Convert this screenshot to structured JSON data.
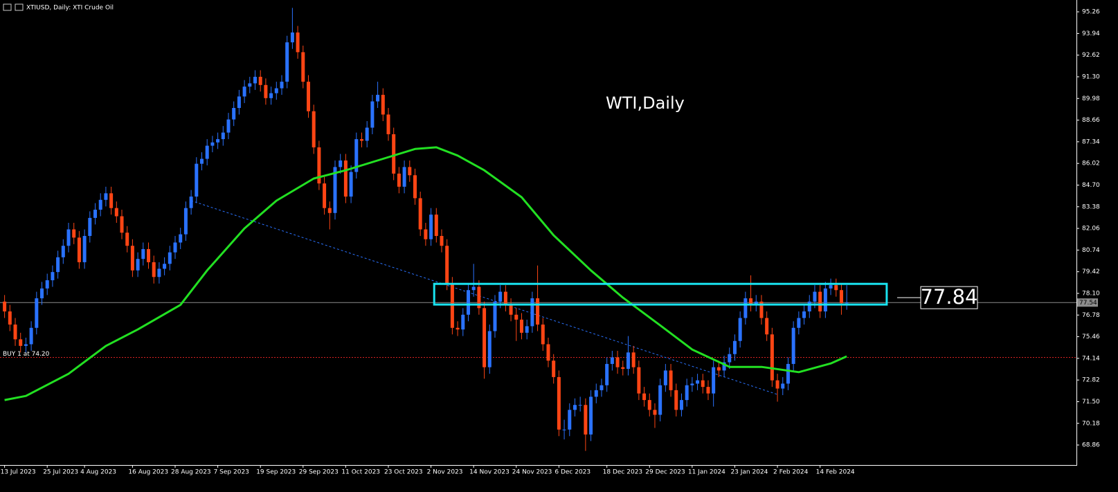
{
  "chart_data": {
    "type": "candlestick",
    "title": "XTIUSD, Daily:  XTI Crude Oil",
    "annotation": "WTI,Daily",
    "up_color": "#2a72ff",
    "down_color": "#ff4514",
    "xlim": [
      -0.86,
      201.1
    ],
    "ylim": [
      67.64,
      95.98
    ],
    "yticks": [
      95.26,
      93.94,
      92.62,
      {
        "value": 91.3,
        "label": "91.30"
      },
      89.98,
      88.66,
      87.34,
      86.02,
      {
        "value": 84.7,
        "label": "84.70"
      },
      83.38,
      82.06,
      80.74,
      79.42,
      {
        "value": 78.1,
        "label": "78.10"
      },
      76.78,
      75.46,
      74.14,
      72.82,
      {
        "value": 71.5,
        "label": "71.50"
      },
      70.18,
      68.86
    ],
    "xticks": [
      {
        "value": 0,
        "label": "13 Jul 2023"
      },
      {
        "value": 8,
        "label": "25 Jul 2023"
      },
      {
        "value": 15,
        "label": "4 Aug 2023"
      },
      {
        "value": 24,
        "label": "16 Aug 2023"
      },
      {
        "value": 32,
        "label": "28 Aug 2023"
      },
      {
        "value": 40,
        "label": "7 Sep 2023"
      },
      {
        "value": 48,
        "label": "19 Sep 2023"
      },
      {
        "value": 56,
        "label": "29 Sep 2023"
      },
      {
        "value": 64,
        "label": "11 Oct 2023"
      },
      {
        "value": 72,
        "label": "23 Oct 2023"
      },
      {
        "value": 80,
        "label": "2 Nov 2023"
      },
      {
        "value": 88,
        "label": "14 Nov 2023"
      },
      {
        "value": 96,
        "label": "24 Nov 2023"
      },
      {
        "value": 104,
        "label": "6 Dec 2023"
      },
      {
        "value": 113,
        "label": "18 Dec 2023"
      },
      {
        "value": 121,
        "label": "29 Dec 2023"
      },
      {
        "value": 129,
        "label": "11 Jan 2024"
      },
      {
        "value": 137,
        "label": "23 Jan 2024"
      },
      {
        "value": 145,
        "label": "2 Feb 2024"
      },
      {
        "value": 153,
        "label": "14 Feb 2024"
      }
    ],
    "open": [
      77.6,
      77.0,
      76.2,
      75.3,
      74.9,
      75.0,
      76.0,
      77.8,
      78.4,
      78.9,
      79.4,
      80.3,
      81.0,
      82.0,
      81.5,
      80.0,
      81.6,
      82.7,
      83.2,
      83.8,
      84.2,
      83.3,
      82.8,
      81.8,
      81.0,
      79.5,
      80.2,
      80.8,
      80.0,
      79.1,
      79.6,
      79.9,
      80.6,
      81.2,
      81.7,
      83.3,
      84.0,
      86.0,
      86.3,
      87.1,
      87.3,
      87.5,
      87.9,
      88.7,
      89.4,
      90.1,
      90.7,
      90.9,
      91.3,
      90.8,
      90.0,
      90.3,
      90.6,
      91.0,
      93.4,
      94.0,
      92.8,
      91.0,
      89.2,
      87.0,
      84.8,
      83.3,
      83.0,
      85.8,
      86.2,
      84.0,
      85.5,
      87.5,
      87.4,
      88.2,
      89.8,
      90.2,
      89.0,
      87.8,
      85.4,
      84.6,
      85.8,
      85.3,
      83.9,
      82.0,
      81.4,
      82.9,
      81.6,
      81.0,
      78.7,
      76.0,
      75.9,
      76.8,
      78.3,
      78.5,
      77.2,
      73.6,
      75.8,
      77.6,
      78.2,
      77.4,
      76.8,
      76.5,
      75.7,
      76.1,
      77.8,
      76.2,
      75.0,
      74.0,
      73.0,
      69.8,
      69.8,
      71.0,
      71.3,
      71.3,
      69.5,
      71.8,
      72.2,
      72.5,
      73.8,
      74.2,
      73.6,
      73.5,
      74.5,
      73.6,
      72.0,
      71.6,
      71.0,
      70.7,
      72.5,
      73.4,
      72.2,
      71.0,
      71.6,
      72.5,
      72.6,
      72.8,
      72.4,
      72.0,
      73.6,
      73.4,
      73.9,
      74.4,
      75.2,
      76.6,
      77.8,
      77.4,
      77.6,
      76.6,
      75.6,
      72.8,
      72.3,
      72.6,
      73.8,
      76.0,
      76.6,
      77.0,
      77.6,
      78.2,
      77.0,
      78.4,
      78.6,
      78.3,
      77.5
    ],
    "high": [
      78.0,
      77.4,
      76.6,
      75.7,
      75.4,
      76.4,
      78.2,
      78.8,
      79.3,
      79.8,
      80.7,
      81.4,
      82.4,
      82.4,
      81.9,
      82.0,
      83.1,
      83.6,
      84.2,
      84.6,
      84.6,
      83.7,
      83.2,
      82.2,
      81.4,
      80.6,
      81.2,
      81.2,
      80.4,
      80.0,
      80.3,
      81.0,
      81.6,
      82.1,
      83.7,
      84.4,
      86.4,
      86.7,
      87.5,
      87.7,
      87.9,
      88.3,
      89.1,
      89.8,
      90.5,
      91.1,
      91.3,
      91.7,
      91.7,
      91.2,
      90.7,
      91.0,
      91.4,
      93.8,
      95.5,
      94.4,
      93.2,
      91.4,
      89.6,
      87.4,
      85.2,
      83.7,
      86.2,
      86.6,
      86.6,
      85.9,
      87.9,
      87.9,
      88.6,
      90.2,
      91.0,
      90.6,
      89.4,
      88.2,
      85.8,
      86.2,
      86.2,
      85.7,
      84.3,
      82.4,
      83.3,
      83.3,
      82.0,
      81.4,
      79.1,
      76.4,
      77.2,
      78.7,
      79.9,
      78.9,
      77.6,
      76.2,
      78.0,
      78.6,
      78.6,
      77.8,
      77.2,
      76.9,
      76.5,
      78.2,
      79.8,
      76.6,
      75.4,
      74.4,
      73.4,
      70.4,
      71.4,
      71.7,
      71.8,
      71.7,
      72.2,
      72.6,
      72.9,
      74.2,
      74.6,
      74.6,
      74.0,
      75.5,
      74.9,
      74.0,
      72.4,
      72.0,
      71.4,
      72.9,
      73.8,
      73.8,
      72.6,
      72.0,
      72.9,
      73.0,
      73.2,
      73.2,
      72.8,
      74.0,
      74.0,
      74.3,
      74.8,
      75.6,
      77.0,
      78.2,
      79.2,
      78.0,
      78.0,
      77.0,
      76.0,
      73.2,
      73.0,
      74.2,
      76.4,
      77.0,
      77.4,
      78.0,
      78.6,
      78.6,
      78.8,
      79.0,
      79.0,
      78.7,
      78.6
    ],
    "low": [
      76.6,
      75.8,
      74.9,
      74.5,
      74.5,
      74.6,
      75.6,
      77.4,
      78.0,
      78.5,
      79.0,
      79.9,
      80.6,
      81.1,
      79.6,
      79.6,
      81.2,
      82.3,
      82.8,
      83.4,
      82.9,
      82.4,
      81.4,
      80.6,
      79.1,
      79.1,
      79.8,
      79.6,
      78.7,
      78.7,
      79.2,
      79.5,
      80.2,
      80.8,
      81.3,
      82.9,
      83.6,
      85.6,
      85.9,
      86.7,
      86.9,
      87.1,
      87.5,
      88.3,
      89.0,
      89.7,
      90.3,
      90.5,
      90.4,
      89.6,
      89.6,
      89.9,
      90.2,
      90.6,
      93.0,
      92.4,
      90.6,
      88.8,
      86.6,
      84.4,
      82.9,
      82.0,
      82.6,
      85.4,
      83.6,
      83.6,
      85.1,
      87.0,
      87.0,
      87.8,
      89.4,
      88.6,
      87.4,
      85.0,
      84.2,
      84.2,
      84.9,
      83.5,
      81.6,
      81.0,
      81.0,
      81.2,
      80.6,
      78.3,
      75.6,
      75.5,
      75.5,
      76.4,
      77.9,
      76.8,
      72.9,
      73.2,
      75.4,
      77.2,
      77.0,
      76.4,
      75.2,
      75.3,
      75.3,
      75.7,
      75.8,
      74.6,
      73.6,
      72.6,
      69.4,
      69.2,
      69.4,
      70.6,
      70.9,
      68.5,
      69.1,
      71.4,
      71.8,
      72.1,
      73.4,
      73.2,
      73.1,
      73.1,
      73.2,
      71.6,
      71.2,
      70.6,
      69.9,
      70.3,
      72.1,
      71.8,
      70.6,
      70.6,
      71.2,
      72.1,
      72.2,
      72.0,
      71.6,
      71.2,
      73.0,
      73.0,
      73.5,
      74.0,
      74.8,
      76.2,
      77.0,
      77.0,
      76.2,
      75.2,
      72.4,
      71.5,
      71.9,
      72.2,
      73.4,
      75.6,
      76.2,
      76.6,
      77.2,
      76.6,
      76.6,
      78.0,
      77.9,
      76.8,
      77.1
    ],
    "close": [
      77.0,
      76.2,
      75.3,
      74.9,
      75.0,
      76.0,
      77.8,
      78.4,
      78.9,
      79.4,
      80.3,
      81.0,
      82.0,
      81.5,
      80.0,
      81.6,
      82.7,
      83.2,
      83.8,
      84.2,
      83.3,
      82.8,
      81.8,
      81.0,
      79.5,
      80.2,
      80.8,
      80.0,
      79.1,
      79.6,
      79.9,
      80.6,
      81.2,
      81.7,
      83.3,
      84.0,
      86.0,
      86.3,
      87.1,
      87.3,
      87.5,
      87.9,
      88.7,
      89.4,
      90.1,
      90.7,
      90.9,
      91.3,
      90.8,
      90.0,
      90.3,
      90.6,
      91.0,
      93.4,
      94.0,
      92.8,
      91.0,
      89.2,
      87.0,
      84.8,
      83.3,
      83.0,
      85.8,
      86.2,
      84.0,
      85.5,
      87.5,
      87.4,
      88.2,
      89.8,
      90.2,
      89.0,
      87.8,
      85.4,
      84.6,
      85.8,
      85.3,
      83.9,
      82.0,
      81.4,
      82.9,
      81.6,
      81.0,
      78.7,
      76.0,
      75.9,
      76.8,
      78.3,
      78.5,
      77.2,
      73.6,
      75.8,
      77.6,
      78.2,
      77.4,
      76.8,
      76.5,
      75.7,
      76.1,
      77.8,
      76.2,
      75.0,
      74.0,
      73.0,
      69.8,
      69.8,
      71.0,
      71.3,
      71.3,
      69.5,
      71.8,
      72.2,
      72.5,
      73.8,
      74.2,
      73.6,
      73.5,
      74.5,
      73.6,
      72.0,
      71.6,
      71.0,
      70.7,
      72.5,
      73.4,
      72.2,
      71.0,
      71.6,
      72.5,
      72.6,
      72.8,
      72.4,
      72.0,
      73.6,
      73.4,
      73.9,
      74.4,
      75.2,
      76.6,
      77.8,
      77.4,
      77.6,
      76.6,
      75.6,
      72.8,
      72.3,
      72.6,
      73.8,
      76.0,
      76.6,
      77.0,
      77.6,
      78.2,
      77.0,
      78.4,
      78.6,
      78.3,
      77.5,
      77.54
    ],
    "moving_average": {
      "color": "#22e022",
      "x": [
        0,
        4,
        12,
        19,
        25,
        33,
        38,
        45,
        51,
        58,
        64,
        71,
        77,
        81,
        85,
        90,
        97,
        103,
        110,
        116,
        123,
        129,
        136,
        142,
        149,
        155,
        158
      ],
      "values": [
        71.6,
        71.85,
        73.2,
        74.9,
        75.9,
        77.4,
        79.5,
        82.06,
        83.75,
        85.1,
        85.6,
        86.3,
        86.9,
        87.0,
        86.5,
        85.6,
        83.96,
        81.64,
        79.5,
        77.84,
        76.15,
        74.68,
        73.62,
        73.62,
        73.3,
        73.83,
        74.26
      ]
    },
    "trendline": {
      "color": "#2a72ff",
      "x": [
        35,
        145
      ],
      "values": [
        83.75,
        71.94
      ]
    },
    "zone": {
      "color": "#19e3f0",
      "x": [
        80.6,
        165.5
      ],
      "values": [
        77.42,
        78.68
      ]
    },
    "price_label": 77.84,
    "bid": 77.54,
    "buy_level": 74.2,
    "buy_label": "BUY 1 at 74.20"
  }
}
